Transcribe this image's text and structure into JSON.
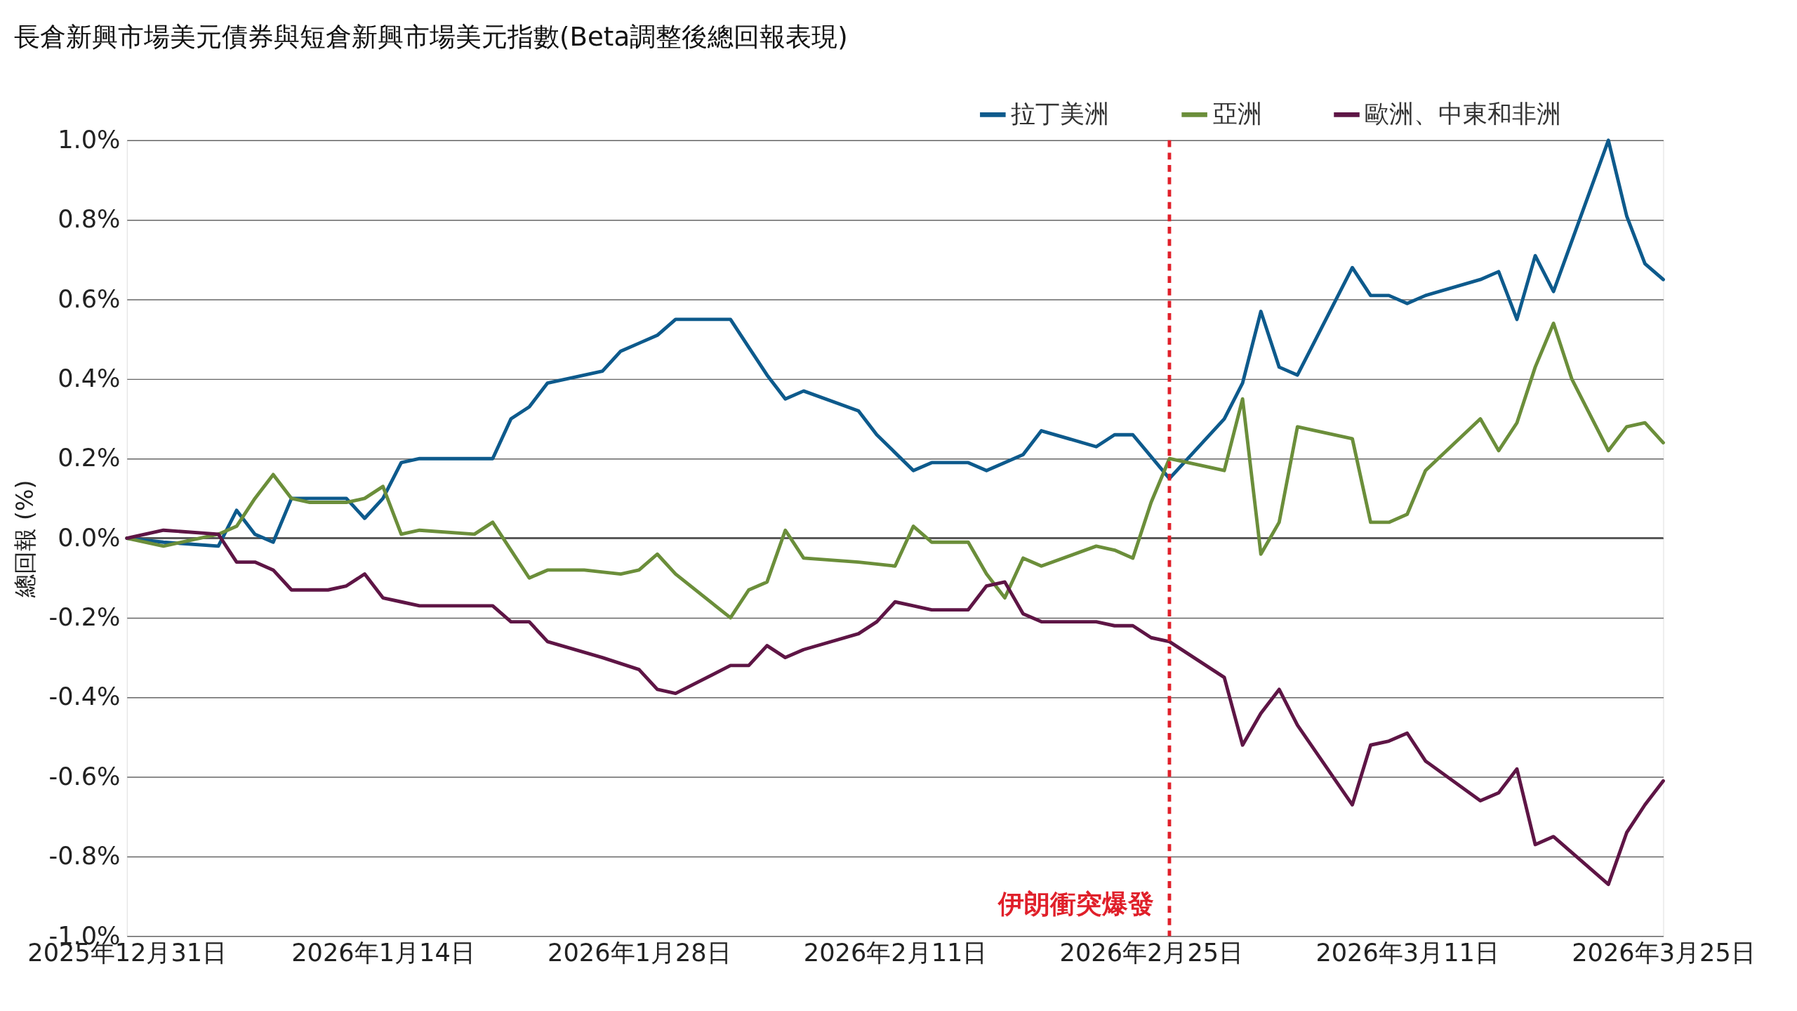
{
  "chart_data": {
    "type": "line",
    "title": "長倉新興市場美元債券與短倉新興市場美元指數(Beta調整後總回報表現)",
    "ylabel": "總回報 (%)",
    "xlim": [
      "2025-12-31",
      "2026-03-25"
    ],
    "xticks": [
      {
        "value": "2025-12-31",
        "label": "2025年12月31日"
      },
      {
        "value": "2026-01-14",
        "label": "2026年1月14日"
      },
      {
        "value": "2026-01-28",
        "label": "2026年1月28日"
      },
      {
        "value": "2026-02-11",
        "label": "2026年2月11日"
      },
      {
        "value": "2026-02-25",
        "label": "2026年2月25日"
      },
      {
        "value": "2026-03-11",
        "label": "2026年3月11日"
      },
      {
        "value": "2026-03-25",
        "label": "2026年3月25日"
      }
    ],
    "ylim": [
      -1.0,
      1.0
    ],
    "yticks": [
      {
        "value": -1.0,
        "label": "-1.0%"
      },
      {
        "value": -0.8,
        "label": "-0.8%"
      },
      {
        "value": -0.6,
        "label": "-0.6%"
      },
      {
        "value": -0.4,
        "label": "-0.4%"
      },
      {
        "value": -0.2,
        "label": "-0.2%"
      },
      {
        "value": 0.0,
        "label": "0.0%"
      },
      {
        "value": 0.2,
        "label": "0.2%"
      },
      {
        "value": 0.4,
        "label": "0.4%"
      },
      {
        "value": 0.6,
        "label": "0.6%"
      },
      {
        "value": 0.8,
        "label": "0.8%"
      },
      {
        "value": 1.0,
        "label": "1.0%"
      }
    ],
    "grid": "y",
    "legend": "top right",
    "marker": "none",
    "line_style": "solid",
    "ref_lines": [
      {
        "axis": "y",
        "value": 0,
        "label": null,
        "color": "#595959",
        "line_style": "solid"
      },
      {
        "axis": "x",
        "value": "2026-02-26",
        "label": "伊朗衝突爆發",
        "color": "#e0202a",
        "line_style": "dashed"
      }
    ],
    "series": [
      {
        "name": "拉丁美洲",
        "color": "#0d5a8c",
        "x": [
          "2025-12-31",
          "2026-01-02",
          "2026-01-05",
          "2026-01-06",
          "2026-01-07",
          "2026-01-08",
          "2026-01-09",
          "2026-01-12",
          "2026-01-13",
          "2026-01-14",
          "2026-01-15",
          "2026-01-16",
          "2026-01-19",
          "2026-01-20",
          "2026-01-21",
          "2026-01-22",
          "2026-01-23",
          "2026-01-26",
          "2026-01-27",
          "2026-01-28",
          "2026-01-29",
          "2026-01-30",
          "2026-02-02",
          "2026-02-03",
          "2026-02-04",
          "2026-02-05",
          "2026-02-06",
          "2026-02-09",
          "2026-02-10",
          "2026-02-12",
          "2026-02-13",
          "2026-02-15",
          "2026-02-16",
          "2026-02-18",
          "2026-02-19",
          "2026-02-22",
          "2026-02-23",
          "2026-02-24",
          "2026-02-26",
          "2026-03-01",
          "2026-03-02",
          "2026-03-03",
          "2026-03-04",
          "2026-03-05",
          "2026-03-08",
          "2026-03-09",
          "2026-03-10",
          "2026-03-11",
          "2026-03-12",
          "2026-03-15",
          "2026-03-16",
          "2026-03-17",
          "2026-03-18",
          "2026-03-19",
          "2026-03-22",
          "2026-03-23",
          "2026-03-24",
          "2026-03-25"
        ],
        "values": [
          0,
          -0.01,
          -0.02,
          0.07,
          0.01,
          -0.01,
          0.1,
          0.1,
          0.05,
          0.1,
          0.19,
          0.2,
          0.2,
          0.2,
          0.3,
          0.33,
          0.39,
          0.42,
          0.47,
          0.49,
          0.51,
          0.55,
          0.55,
          0.48,
          0.41,
          0.35,
          0.37,
          0.32,
          0.26,
          0.17,
          0.19,
          0.19,
          0.17,
          0.21,
          0.27,
          0.23,
          0.26,
          0.26,
          0.15,
          0.3,
          0.39,
          0.57,
          0.43,
          0.41,
          0.68,
          0.61,
          0.61,
          0.59,
          0.61,
          0.65,
          0.67,
          0.55,
          0.71,
          0.62,
          1.0,
          0.81,
          0.69,
          0.65
        ]
      },
      {
        "name": "亞洲",
        "color": "#6b8e3a",
        "x": [
          "2025-12-31",
          "2026-01-02",
          "2026-01-05",
          "2026-01-06",
          "2026-01-07",
          "2026-01-08",
          "2026-01-09",
          "2026-01-10",
          "2026-01-12",
          "2026-01-13",
          "2026-01-14",
          "2026-01-15",
          "2026-01-16",
          "2026-01-19",
          "2026-01-20",
          "2026-01-21",
          "2026-01-22",
          "2026-01-23",
          "2026-01-25",
          "2026-01-27",
          "2026-01-28",
          "2026-01-29",
          "2026-01-30",
          "2026-02-02",
          "2026-02-03",
          "2026-02-04",
          "2026-02-05",
          "2026-02-06",
          "2026-02-09",
          "2026-02-11",
          "2026-02-12",
          "2026-02-13",
          "2026-02-15",
          "2026-02-16",
          "2026-02-17",
          "2026-02-18",
          "2026-02-19",
          "2026-02-22",
          "2026-02-23",
          "2026-02-24",
          "2026-02-25",
          "2026-02-26",
          "2026-03-01",
          "2026-03-02",
          "2026-03-03",
          "2026-03-04",
          "2026-03-05",
          "2026-03-08",
          "2026-03-09",
          "2026-03-10",
          "2026-03-11",
          "2026-03-12",
          "2026-03-15",
          "2026-03-16",
          "2026-03-17",
          "2026-03-18",
          "2026-03-19",
          "2026-03-20",
          "2026-03-22",
          "2026-03-23",
          "2026-03-24",
          "2026-03-25"
        ],
        "values": [
          0,
          -0.02,
          0.01,
          0.03,
          0.1,
          0.16,
          0.1,
          0.09,
          0.09,
          0.1,
          0.13,
          0.01,
          0.02,
          0.01,
          0.04,
          -0.03,
          -0.1,
          -0.08,
          -0.08,
          -0.09,
          -0.08,
          -0.04,
          -0.09,
          -0.2,
          -0.13,
          -0.11,
          0.02,
          -0.05,
          -0.06,
          -0.07,
          0.03,
          -0.01,
          -0.01,
          -0.09,
          -0.15,
          -0.05,
          -0.07,
          -0.02,
          -0.03,
          -0.05,
          0.09,
          0.2,
          0.17,
          0.35,
          -0.04,
          0.04,
          0.28,
          0.25,
          0.04,
          0.04,
          0.06,
          0.17,
          0.3,
          0.22,
          0.29,
          0.43,
          0.54,
          0.4,
          0.22,
          0.28,
          0.29,
          0.24
        ]
      },
      {
        "name": "歐洲、中東和非洲",
        "color": "#5e1545",
        "x": [
          "2025-12-31",
          "2026-01-02",
          "2026-01-05",
          "2026-01-06",
          "2026-01-07",
          "2026-01-08",
          "2026-01-09",
          "2026-01-11",
          "2026-01-12",
          "2026-01-13",
          "2026-01-14",
          "2026-01-15",
          "2026-01-16",
          "2026-01-19",
          "2026-01-20",
          "2026-01-21",
          "2026-01-22",
          "2026-01-23",
          "2026-01-26",
          "2026-01-28",
          "2026-01-29",
          "2026-01-30",
          "2026-02-02",
          "2026-02-03",
          "2026-02-04",
          "2026-02-05",
          "2026-02-06",
          "2026-02-09",
          "2026-02-10",
          "2026-02-11",
          "2026-02-12",
          "2026-02-13",
          "2026-02-15",
          "2026-02-16",
          "2026-02-17",
          "2026-02-18",
          "2026-02-19",
          "2026-02-22",
          "2026-02-23",
          "2026-02-24",
          "2026-02-25",
          "2026-02-26",
          "2026-03-01",
          "2026-03-02",
          "2026-03-03",
          "2026-03-04",
          "2026-03-05",
          "2026-03-08",
          "2026-03-09",
          "2026-03-10",
          "2026-03-11",
          "2026-03-12",
          "2026-03-15",
          "2026-03-16",
          "2026-03-17",
          "2026-03-18",
          "2026-03-19",
          "2026-03-22",
          "2026-03-23",
          "2026-03-24",
          "2026-03-25"
        ],
        "values": [
          0,
          0.02,
          0.01,
          -0.06,
          -0.06,
          -0.08,
          -0.13,
          -0.13,
          -0.12,
          -0.09,
          -0.15,
          -0.16,
          -0.17,
          -0.17,
          -0.17,
          -0.21,
          -0.21,
          -0.26,
          -0.3,
          -0.33,
          -0.38,
          -0.39,
          -0.32,
          -0.32,
          -0.27,
          -0.3,
          -0.28,
          -0.24,
          -0.21,
          -0.16,
          -0.17,
          -0.18,
          -0.18,
          -0.12,
          -0.11,
          -0.19,
          -0.21,
          -0.21,
          -0.22,
          -0.22,
          -0.25,
          -0.26,
          -0.35,
          -0.52,
          -0.44,
          -0.38,
          -0.47,
          -0.67,
          -0.52,
          -0.51,
          -0.49,
          -0.56,
          -0.66,
          -0.64,
          -0.58,
          -0.77,
          -0.75,
          -0.87,
          -0.74,
          -0.67,
          -0.61
        ]
      }
    ]
  }
}
